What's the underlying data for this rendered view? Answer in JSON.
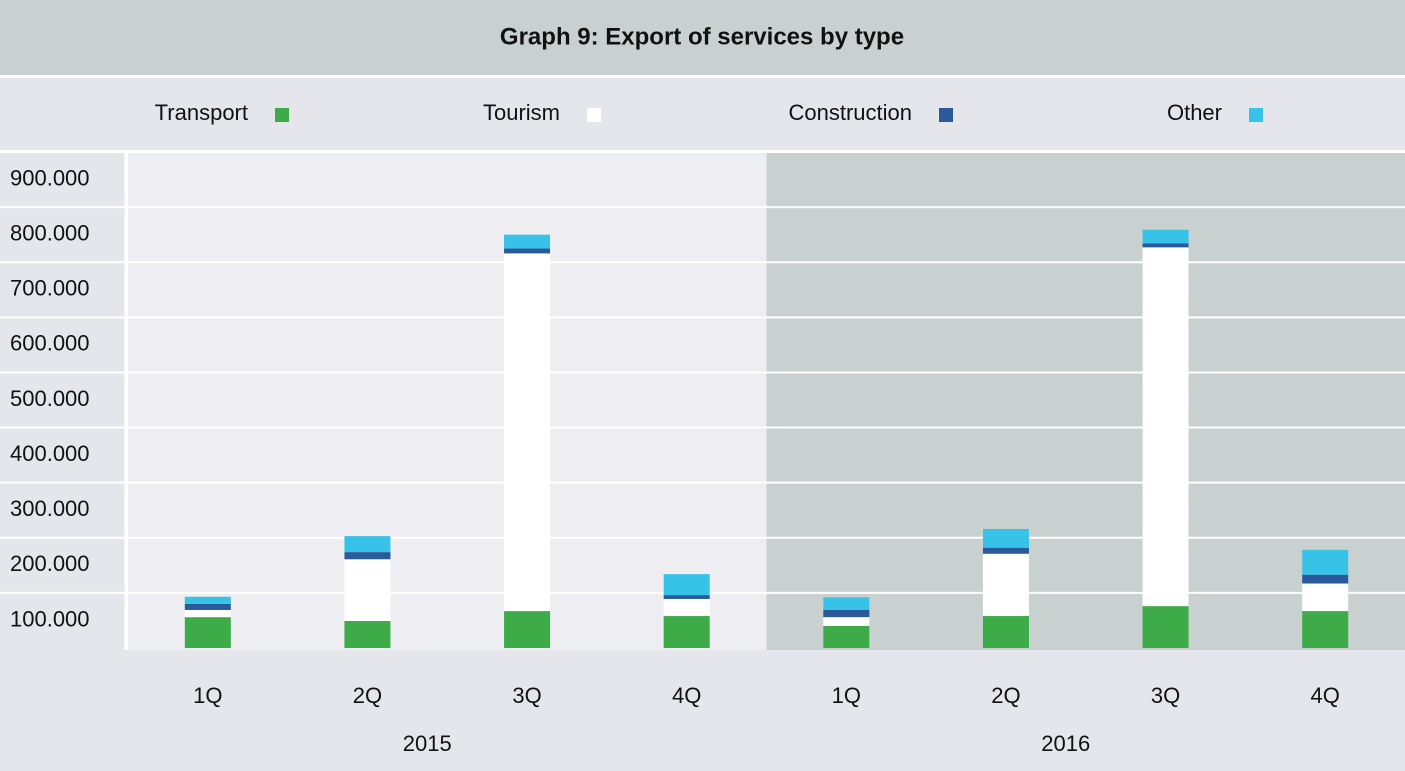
{
  "chart_data": {
    "type": "stacked_bar",
    "title": "Graph 9: Export of services by type",
    "categories": [
      "1Q",
      "2Q",
      "3Q",
      "4Q",
      "1Q",
      "2Q",
      "3Q",
      "4Q"
    ],
    "groups": [
      "2015",
      "2016"
    ],
    "series": [
      {
        "name": "Transport",
        "color": "#3dab48",
        "values": [
          56000,
          49000,
          67000,
          58000,
          40000,
          58000,
          76000,
          67000
        ]
      },
      {
        "name": "Tourism",
        "color": "#ffffff",
        "values": [
          13000,
          112000,
          649000,
          31000,
          16000,
          113000,
          651000,
          50000
        ]
      },
      {
        "name": "Construction",
        "color": "#2b5a9b",
        "values": [
          11000,
          13000,
          9000,
          7000,
          13000,
          11000,
          7000,
          16000
        ]
      },
      {
        "name": "Other",
        "color": "#37c2e7",
        "values": [
          13000,
          29000,
          25000,
          38000,
          23000,
          34000,
          25000,
          45000
        ]
      }
    ],
    "ylim": [
      0,
      900000
    ],
    "yticks": [
      {
        "value": 100000,
        "label": "100.000"
      },
      {
        "value": 200000,
        "label": "200.000"
      },
      {
        "value": 300000,
        "label": "300.000"
      },
      {
        "value": 400000,
        "label": "400.000"
      },
      {
        "value": 500000,
        "label": "500.000"
      },
      {
        "value": 600000,
        "label": "600.000"
      },
      {
        "value": 700000,
        "label": "700.000"
      },
      {
        "value": 800000,
        "label": "800.000"
      },
      {
        "value": 900000,
        "label": "900.000"
      }
    ],
    "grid": true
  }
}
